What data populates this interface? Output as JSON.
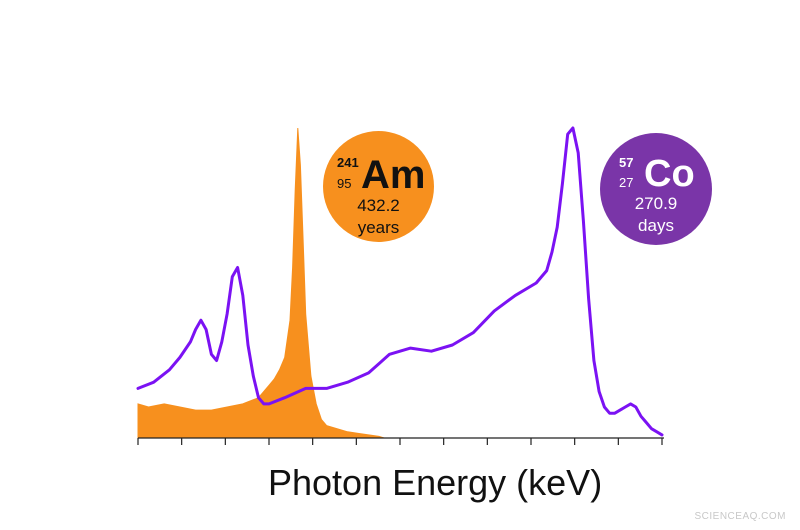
{
  "chart_data": {
    "type": "area",
    "xlabel": "Photon Energy (keV)",
    "ylabel": "",
    "xlim": [
      0,
      100
    ],
    "ylim": [
      0,
      100
    ],
    "xticks_count": 13,
    "grid": false,
    "series": [
      {
        "color": "#f7901e",
        "style": "filled",
        "x": [
          0,
          2,
          5,
          8,
          11,
          14,
          17,
          20,
          23,
          25,
          26,
          27,
          28,
          29,
          29.5,
          30,
          30.5,
          31,
          31.5,
          32,
          33,
          34,
          35,
          36,
          38,
          40,
          42,
          44,
          46,
          47
        ],
        "y": [
          11,
          10,
          11,
          10,
          9,
          9,
          10,
          11,
          13,
          17,
          19,
          22,
          26,
          38,
          55,
          80,
          100,
          88,
          64,
          40,
          20,
          11,
          6,
          4,
          3,
          2,
          1.5,
          1,
          0.5,
          0
        ]
      },
      {
        "color": "#7b12f3",
        "style": "line",
        "x": [
          0,
          3,
          6,
          8,
          10,
          11,
          12,
          13,
          14,
          15,
          16,
          17,
          18,
          19,
          20,
          21,
          22,
          23,
          24,
          25,
          28,
          32,
          36,
          40,
          44,
          48,
          52,
          56,
          60,
          64,
          68,
          72,
          76,
          78,
          79,
          80,
          81,
          82,
          83,
          84,
          85,
          86,
          87,
          88,
          89,
          90,
          91,
          92,
          93,
          94,
          95,
          96,
          97,
          98,
          99,
          100
        ],
        "y": [
          16,
          18,
          22,
          26,
          31,
          35,
          38,
          35,
          27,
          25,
          31,
          40,
          52,
          55,
          46,
          30,
          20,
          13,
          11,
          11,
          13,
          16,
          16,
          18,
          21,
          27,
          29,
          28,
          30,
          34,
          41,
          46,
          50,
          54,
          60,
          68,
          82,
          98,
          100,
          92,
          70,
          45,
          25,
          15,
          10,
          8,
          8,
          9,
          10,
          11,
          10,
          7,
          5,
          3,
          2,
          1
        ]
      }
    ]
  },
  "badges": {
    "am": {
      "mass": "241",
      "z": "95",
      "symbol": "Am",
      "half_life": "432.2",
      "unit": "years",
      "color": "#f7901e"
    },
    "co": {
      "mass": "57",
      "z": "27",
      "symbol": "Co",
      "half_life": "270.9",
      "unit": "days",
      "color": "#7a35a8"
    }
  },
  "watermark": "SCIENCEAQ.COM"
}
